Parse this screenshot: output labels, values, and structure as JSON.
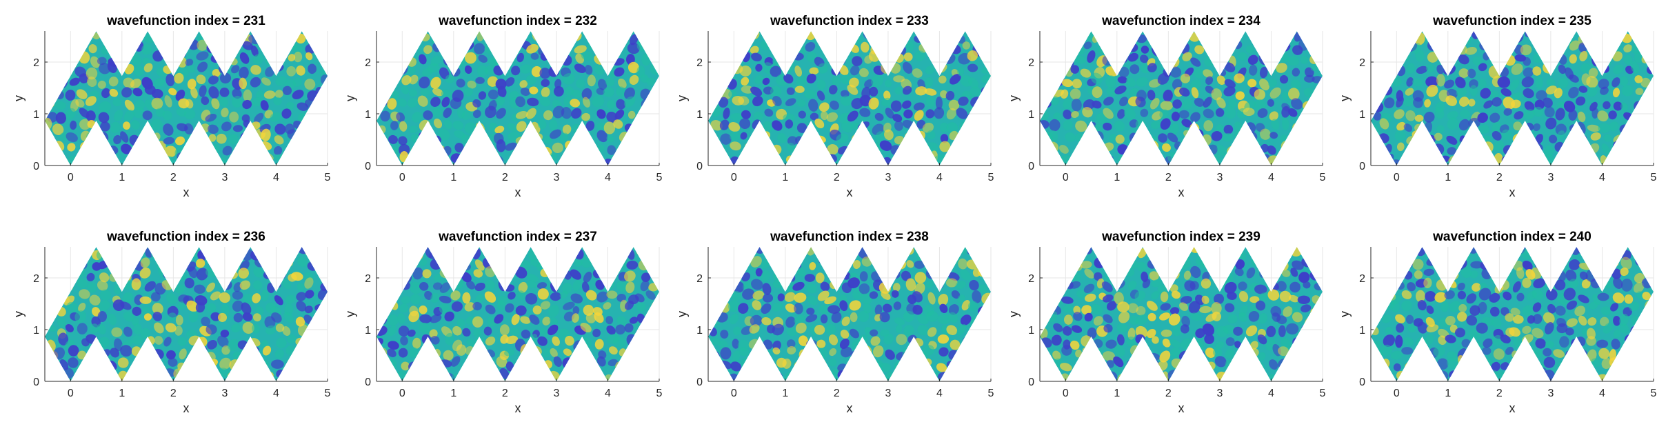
{
  "chart_data": [
    {
      "type": "heatmap",
      "title": "wavefunction index = 231",
      "xlabel": "x",
      "ylabel": "y",
      "xlim": [
        -0.5,
        5
      ],
      "ylim": [
        0,
        2.6
      ],
      "x_ticks": [
        "0",
        "1",
        "2",
        "3",
        "4",
        "5"
      ],
      "y_ticks": [
        "0",
        "1",
        "2"
      ],
      "grid": true,
      "colormap": "parula"
    },
    {
      "type": "heatmap",
      "title": "wavefunction index = 232",
      "xlabel": "x",
      "ylabel": "y",
      "xlim": [
        -0.5,
        5
      ],
      "ylim": [
        0,
        2.6
      ],
      "x_ticks": [
        "0",
        "1",
        "2",
        "3",
        "4",
        "5"
      ],
      "y_ticks": [
        "0",
        "1",
        "2"
      ],
      "grid": true,
      "colormap": "parula"
    },
    {
      "type": "heatmap",
      "title": "wavefunction index = 233",
      "xlabel": "x",
      "ylabel": "y",
      "xlim": [
        -0.5,
        5
      ],
      "ylim": [
        0,
        2.6
      ],
      "x_ticks": [
        "0",
        "1",
        "2",
        "3",
        "4",
        "5"
      ],
      "y_ticks": [
        "0",
        "1",
        "2"
      ],
      "grid": true,
      "colormap": "parula"
    },
    {
      "type": "heatmap",
      "title": "wavefunction index = 234",
      "xlabel": "x",
      "ylabel": "y",
      "xlim": [
        -0.5,
        5
      ],
      "ylim": [
        0,
        2.6
      ],
      "x_ticks": [
        "0",
        "1",
        "2",
        "3",
        "4",
        "5"
      ],
      "y_ticks": [
        "0",
        "1",
        "2"
      ],
      "grid": true,
      "colormap": "parula"
    },
    {
      "type": "heatmap",
      "title": "wavefunction index = 235",
      "xlabel": "x",
      "ylabel": "y",
      "xlim": [
        -0.5,
        5
      ],
      "ylim": [
        0,
        2.6
      ],
      "x_ticks": [
        "0",
        "1",
        "2",
        "3",
        "4",
        "5"
      ],
      "y_ticks": [
        "0",
        "1",
        "2"
      ],
      "grid": true,
      "colormap": "parula"
    },
    {
      "type": "heatmap",
      "title": "wavefunction index = 236",
      "xlabel": "x",
      "ylabel": "y",
      "xlim": [
        -0.5,
        5
      ],
      "ylim": [
        0,
        2.6
      ],
      "x_ticks": [
        "0",
        "1",
        "2",
        "3",
        "4",
        "5"
      ],
      "y_ticks": [
        "0",
        "1",
        "2"
      ],
      "grid": true,
      "colormap": "parula"
    },
    {
      "type": "heatmap",
      "title": "wavefunction index = 237",
      "xlabel": "x",
      "ylabel": "y",
      "xlim": [
        -0.5,
        5
      ],
      "ylim": [
        0,
        2.6
      ],
      "x_ticks": [
        "0",
        "1",
        "2",
        "3",
        "4",
        "5"
      ],
      "y_ticks": [
        "0",
        "1",
        "2"
      ],
      "grid": true,
      "colormap": "parula"
    },
    {
      "type": "heatmap",
      "title": "wavefunction index = 238",
      "xlabel": "x",
      "ylabel": "y",
      "xlim": [
        -0.5,
        5
      ],
      "ylim": [
        0,
        2.6
      ],
      "x_ticks": [
        "0",
        "1",
        "2",
        "3",
        "4",
        "5"
      ],
      "y_ticks": [
        "0",
        "1",
        "2"
      ],
      "grid": true,
      "colormap": "parula"
    },
    {
      "type": "heatmap",
      "title": "wavefunction index = 239",
      "xlabel": "x",
      "ylabel": "y",
      "xlim": [
        -0.5,
        5
      ],
      "ylim": [
        0,
        2.6
      ],
      "x_ticks": [
        "0",
        "1",
        "2",
        "3",
        "4",
        "5"
      ],
      "y_ticks": [
        "0",
        "1",
        "2"
      ],
      "grid": true,
      "colormap": "parula"
    },
    {
      "type": "heatmap",
      "title": "wavefunction index = 240",
      "xlabel": "x",
      "ylabel": "y",
      "xlim": [
        -0.5,
        5
      ],
      "ylim": [
        0,
        2.6
      ],
      "x_ticks": [
        "0",
        "1",
        "2",
        "3",
        "4",
        "5"
      ],
      "y_ticks": [
        "0",
        "1",
        "2"
      ],
      "grid": true,
      "colormap": "parula"
    }
  ],
  "region_outline": [
    [
      -0.5,
      0.866
    ],
    [
      0.5,
      2.598
    ],
    [
      1,
      1.732
    ],
    [
      1.5,
      2.598
    ],
    [
      2,
      1.732
    ],
    [
      2.5,
      2.598
    ],
    [
      3,
      1.732
    ],
    [
      3.5,
      2.598
    ],
    [
      4,
      1.732
    ],
    [
      4.5,
      2.598
    ],
    [
      5,
      1.732
    ],
    [
      4,
      0
    ],
    [
      3.5,
      0.866
    ],
    [
      3,
      0
    ],
    [
      2.5,
      0.866
    ],
    [
      2,
      0
    ],
    [
      1.5,
      0.866
    ],
    [
      1,
      0
    ],
    [
      0.5,
      0.866
    ],
    [
      0,
      0
    ]
  ],
  "colors": {
    "background": "#ffffff",
    "axis": "#262626",
    "grid": "#e6e6e6",
    "field_base": "#26b3b0",
    "low": "#3e3fc8",
    "mid": "#20c0a0",
    "high": "#f5d53a"
  }
}
